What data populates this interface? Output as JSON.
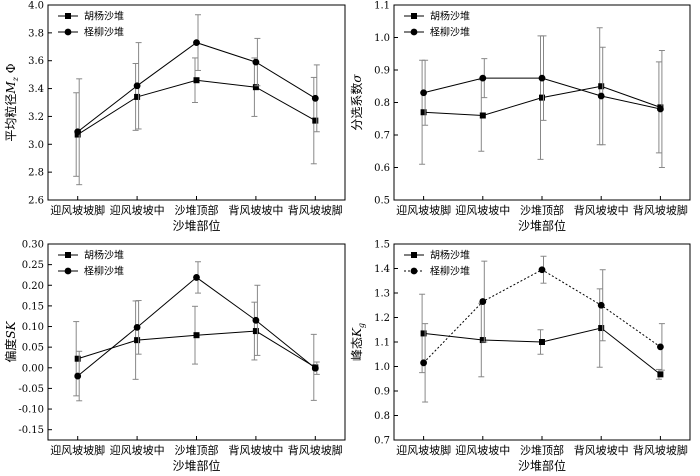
{
  "x_label": "沙堆部位",
  "chart_data": [
    {
      "type": "line",
      "panel": "top-left",
      "categories": [
        "迎风坡坡脚",
        "迎风坡坡中",
        "沙堆顶部",
        "背风坡坡中",
        "背风坡坡脚"
      ],
      "xlabel": "沙堆部位",
      "ylabel": "平均粒径Mz Φ",
      "ylabel_parts": {
        "main": "平均粒径",
        "sym": "M",
        "sub": "z",
        "unit": "Φ"
      },
      "ylim": [
        2.6,
        4.0
      ],
      "yticks": [
        2.6,
        2.8,
        3.0,
        3.2,
        3.4,
        3.6,
        3.8,
        4.0
      ],
      "ytick_labels": [
        "2.6",
        "2.8",
        "3.0",
        "3.2",
        "3.4",
        "3.6",
        "3.8",
        "4.0"
      ],
      "legend_position": "top-left",
      "series": [
        {
          "name": "胡杨沙堆",
          "marker": "square",
          "dashed": false,
          "values": [
            3.07,
            3.34,
            3.46,
            3.41,
            3.17
          ],
          "err": [
            0.3,
            0.24,
            0.16,
            0.21,
            0.31
          ]
        },
        {
          "name": "柽柳沙堆",
          "marker": "circle",
          "dashed": false,
          "values": [
            3.09,
            3.42,
            3.73,
            3.59,
            3.33
          ],
          "err": [
            0.38,
            0.31,
            0.2,
            0.17,
            0.24
          ]
        }
      ]
    },
    {
      "type": "line",
      "panel": "top-right",
      "categories": [
        "迎风坡坡脚",
        "迎风坡坡中",
        "沙堆顶部",
        "背风坡坡中",
        "背风坡坡脚"
      ],
      "xlabel": "沙堆部位",
      "ylabel": "分选系数σ",
      "ylabel_parts": {
        "main": "分选系数",
        "sym": "σ",
        "sub": "",
        "unit": ""
      },
      "ylim": [
        0.5,
        1.1
      ],
      "yticks": [
        0.5,
        0.6,
        0.7,
        0.8,
        0.9,
        1.0,
        1.1
      ],
      "ytick_labels": [
        "0.5",
        "0.6",
        "0.7",
        "0.8",
        "0.9",
        "1.0",
        "1.1"
      ],
      "legend_position": "top-left",
      "series": [
        {
          "name": "胡杨沙堆",
          "marker": "square",
          "dashed": false,
          "values": [
            0.77,
            0.76,
            0.815,
            0.85,
            0.785
          ],
          "err": [
            0.16,
            0.11,
            0.19,
            0.18,
            0.14
          ]
        },
        {
          "name": "柽柳沙堆",
          "marker": "circle",
          "dashed": false,
          "values": [
            0.83,
            0.875,
            0.875,
            0.82,
            0.78
          ],
          "err": [
            0.1,
            0.06,
            0.13,
            0.15,
            0.18
          ]
        }
      ]
    },
    {
      "type": "line",
      "panel": "bottom-left",
      "categories": [
        "迎风坡坡脚",
        "迎风坡坡中",
        "沙堆顶部",
        "背风坡坡中",
        "背风坡坡脚"
      ],
      "xlabel": "沙堆部位",
      "ylabel": "偏度SK",
      "ylabel_parts": {
        "main": "偏度",
        "sym": "SK",
        "sub": "",
        "unit": ""
      },
      "ylim": [
        -0.175,
        0.3
      ],
      "yticks": [
        -0.15,
        -0.1,
        -0.05,
        0.0,
        0.05,
        0.1,
        0.15,
        0.2,
        0.25,
        0.3
      ],
      "ytick_labels": [
        "-0.15",
        "-0.10",
        "-0.05",
        "0.00",
        "0.05",
        "0.10",
        "0.15",
        "0.20",
        "0.25",
        "0.30"
      ],
      "legend_position": "top-left",
      "series": [
        {
          "name": "胡杨沙堆",
          "marker": "square",
          "dashed": false,
          "values": [
            0.022,
            0.067,
            0.079,
            0.089,
            0.001
          ],
          "err": [
            0.09,
            0.095,
            0.07,
            0.07,
            0.08
          ]
        },
        {
          "name": "柽柳沙堆",
          "marker": "circle",
          "dashed": false,
          "values": [
            -0.02,
            0.098,
            0.219,
            0.115,
            -0.001
          ],
          "err": [
            0.06,
            0.065,
            0.038,
            0.085,
            0.015
          ]
        }
      ]
    },
    {
      "type": "line",
      "panel": "bottom-right",
      "categories": [
        "迎风坡坡脚",
        "迎风坡坡中",
        "沙堆顶部",
        "背风坡坡中",
        "背风坡坡脚"
      ],
      "xlabel": "沙堆部位",
      "ylabel": "峰态Kg",
      "ylabel_parts": {
        "main": "峰态",
        "sym": "K",
        "sub": "g",
        "unit": ""
      },
      "ylim": [
        0.7,
        1.5
      ],
      "yticks": [
        0.7,
        0.8,
        0.9,
        1.0,
        1.1,
        1.2,
        1.3,
        1.4,
        1.5
      ],
      "ytick_labels": [
        "0.7",
        "0.8",
        "0.9",
        "1.0",
        "1.1",
        "1.2",
        "1.3",
        "1.4",
        "1.5"
      ],
      "legend_position": "top-left",
      "series": [
        {
          "name": "胡杨沙堆",
          "marker": "square",
          "dashed": false,
          "values": [
            1.135,
            1.108,
            1.1,
            1.157,
            0.968
          ],
          "err": [
            0.16,
            0.15,
            0.05,
            0.16,
            0.02
          ]
        },
        {
          "name": "柽柳沙堆",
          "marker": "circle",
          "dashed": true,
          "values": [
            1.015,
            1.265,
            1.395,
            1.25,
            1.08
          ],
          "err": [
            0.16,
            0.165,
            0.055,
            0.145,
            0.095
          ]
        }
      ]
    }
  ]
}
